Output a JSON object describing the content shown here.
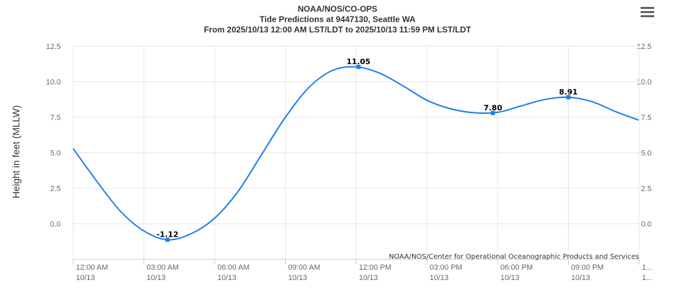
{
  "chart_data": {
    "type": "line",
    "title": "NOAA/NOS/CO-OPS",
    "subtitle_lines": [
      "Tide Predictions at 9447130, Seattle WA",
      "From 2025/10/13 12:00 AM LST/LDT to 2025/10/13 11:59 PM LST/LDT"
    ],
    "ylabel": "Height in feet (MLLW)",
    "xlabel": "",
    "ylim": [
      -2.5,
      12.5
    ],
    "xlim": [
      0,
      24
    ],
    "y_ticks": [
      "12.5",
      "10.0",
      "7.5",
      "5.0",
      "2.5",
      "0.0"
    ],
    "y_tick_values": [
      12.5,
      10.0,
      7.5,
      5.0,
      2.5,
      0.0
    ],
    "x_tick_hours": [
      0,
      3,
      6,
      9,
      12,
      15,
      18,
      21,
      24
    ],
    "x_tick_labels": [
      [
        "12:00 AM",
        "10/13"
      ],
      [
        "03:00 AM",
        "10/13"
      ],
      [
        "06:00 AM",
        "10/13"
      ],
      [
        "09:00 AM",
        "10/13"
      ],
      [
        "12:00 PM",
        "10/13"
      ],
      [
        "03:00 PM",
        "10/13"
      ],
      [
        "06:00 PM",
        "10/13"
      ],
      [
        "09:00 PM",
        "10/13"
      ],
      [
        "1...",
        "1..."
      ]
    ],
    "grid": true,
    "series": [
      {
        "color": "#1c7ee8",
        "x": [
          0,
          1,
          2,
          3,
          4,
          5,
          6,
          7,
          8,
          9,
          10,
          11,
          12,
          13,
          14,
          15,
          16,
          17,
          18,
          19,
          20,
          21,
          22,
          23,
          23.98
        ],
        "values": [
          5.3,
          3.0,
          0.9,
          -0.5,
          -1.12,
          -0.7,
          0.4,
          2.3,
          4.9,
          7.5,
          9.6,
          10.8,
          11.05,
          10.6,
          9.7,
          8.7,
          8.1,
          7.82,
          7.85,
          8.3,
          8.75,
          8.91,
          8.6,
          7.9,
          7.3
        ]
      }
    ],
    "extrema": [
      {
        "x": 4.0,
        "value": -1.12,
        "label": "-1.12"
      },
      {
        "x": 12.1,
        "value": 11.05,
        "label": "11.05"
      },
      {
        "x": 17.8,
        "value": 7.8,
        "label": "7.80"
      },
      {
        "x": 21.0,
        "value": 8.91,
        "label": "8.91"
      }
    ],
    "credits": "NOAA/NOS/Center for Operational Oceanographic Products and Services"
  },
  "menu": {
    "icon": "hamburger-menu-icon"
  }
}
